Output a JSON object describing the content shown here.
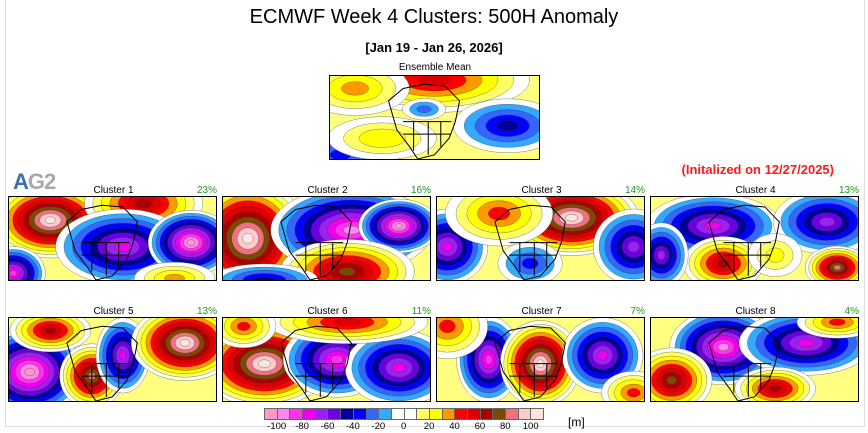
{
  "header": {
    "title": "ECMWF Week 4 Clusters: 500H Anomaly",
    "date_range": "[Jan 19 - Jan 26, 2026]",
    "ensemble_label": "Ensemble Mean",
    "initialized": "(Initalized on 12/27/2025)"
  },
  "logo": {
    "part1": "A",
    "part2": "G2"
  },
  "clusters": [
    {
      "label": "Cluster 1",
      "percent": "23%"
    },
    {
      "label": "Cluster 2",
      "percent": "16%"
    },
    {
      "label": "Cluster 3",
      "percent": "14%"
    },
    {
      "label": "Cluster 4",
      "percent": "13%"
    },
    {
      "label": "Cluster 5",
      "percent": "13%"
    },
    {
      "label": "Cluster 6",
      "percent": "11%"
    },
    {
      "label": "Cluster 7",
      "percent": "7%"
    },
    {
      "label": "Cluster 8",
      "percent": "4%"
    }
  ],
  "colorbar": {
    "unit": "[m]",
    "ticks": [
      "-100",
      "-80",
      "-60",
      "-40",
      "-20",
      "0",
      "20",
      "40",
      "60",
      "80",
      "100"
    ],
    "colors": [
      "#ff99cc",
      "#ff88ee",
      "#ff33ee",
      "#ee00ee",
      "#9922ee",
      "#6a00dd",
      "#000099",
      "#0000ff",
      "#3366ff",
      "#33aaff",
      "#ffffff",
      "#ffffff",
      "#ffff66",
      "#ffff00",
      "#ff9900",
      "#ff0000",
      "#dd0000",
      "#aa0000",
      "#7a4a00",
      "#f07080",
      "#ffcccc",
      "#ffe4e4"
    ]
  }
}
